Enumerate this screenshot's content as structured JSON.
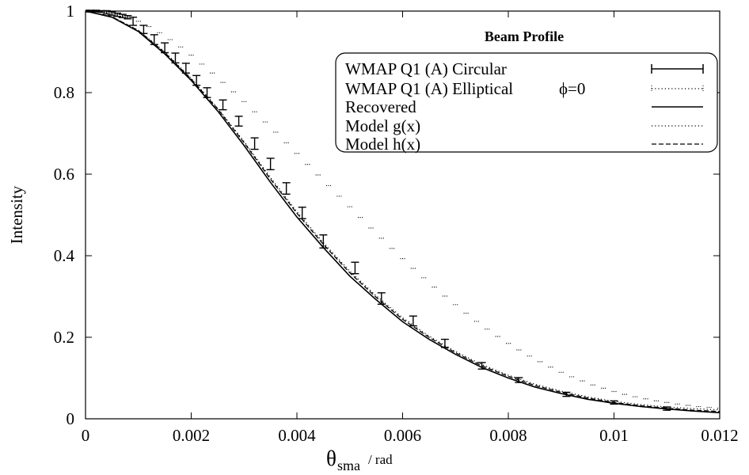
{
  "chart_data": {
    "type": "line",
    "title": "Beam Profile",
    "xlabel": {
      "symbol": "θ",
      "subscript": "sma",
      "unit": "/ rad"
    },
    "ylabel": "Intensity",
    "xlim": [
      0,
      0.012
    ],
    "ylim": [
      0,
      1
    ],
    "x_ticks": [
      "0",
      "0.002",
      "0.004",
      "0.006",
      "0.008",
      "0.01",
      "0.012"
    ],
    "y_ticks": [
      "0",
      "0.2",
      "0.4",
      "0.6",
      "0.8",
      "1"
    ],
    "grid": false,
    "legend_position": "top-right",
    "legend_phi": "ϕ=0",
    "series": [
      {
        "name": "WMAP Q1 (A) Circular",
        "style": "errorbar",
        "x": [
          0.0,
          0.0001,
          0.0002,
          0.0003,
          0.0004,
          0.0005,
          0.0006,
          0.0007,
          0.0008,
          0.0009,
          0.0011,
          0.0013,
          0.0015,
          0.0017,
          0.0019,
          0.0021,
          0.0023,
          0.0026,
          0.0029,
          0.0032,
          0.0035,
          0.0038,
          0.0041,
          0.0045,
          0.0051,
          0.0056,
          0.0062,
          0.0068,
          0.0075,
          0.0082,
          0.0091,
          0.01,
          0.011
        ],
        "y": [
          1.0,
          1.0,
          1.0,
          0.999,
          0.997,
          0.994,
          0.991,
          0.988,
          0.985,
          0.975,
          0.955,
          0.93,
          0.91,
          0.885,
          0.86,
          0.83,
          0.8,
          0.77,
          0.73,
          0.675,
          0.625,
          0.565,
          0.505,
          0.435,
          0.37,
          0.295,
          0.24,
          0.185,
          0.13,
          0.095,
          0.06,
          0.04,
          0.025
        ],
        "err": [
          0.002,
          0.002,
          0.002,
          0.002,
          0.004,
          0.004,
          0.004,
          0.004,
          0.004,
          0.01,
          0.01,
          0.012,
          0.012,
          0.012,
          0.012,
          0.012,
          0.012,
          0.012,
          0.012,
          0.014,
          0.014,
          0.014,
          0.014,
          0.016,
          0.014,
          0.014,
          0.012,
          0.01,
          0.008,
          0.006,
          0.005,
          0.004,
          0.004
        ]
      },
      {
        "name": "WMAP Q1 (A) Elliptical",
        "style": "dotted-points",
        "x": [
          0.0,
          0.0002,
          0.0004,
          0.0006,
          0.0008,
          0.001,
          0.0012,
          0.0014,
          0.0016,
          0.0018,
          0.002,
          0.0022,
          0.0024,
          0.0026,
          0.0028,
          0.003,
          0.0032,
          0.0034,
          0.0036,
          0.0038,
          0.004,
          0.0042,
          0.0044,
          0.0046,
          0.0048,
          0.005,
          0.0052,
          0.0054,
          0.0056,
          0.0058,
          0.006,
          0.0062,
          0.0064,
          0.0066,
          0.0068,
          0.007,
          0.0072,
          0.0074,
          0.0076,
          0.0078,
          0.008,
          0.0082,
          0.0084,
          0.0086,
          0.0088,
          0.009,
          0.0092,
          0.0094,
          0.0096,
          0.0098,
          0.01,
          0.0102,
          0.0104,
          0.0106,
          0.0108,
          0.011,
          0.0112,
          0.0114,
          0.0116,
          0.0118,
          0.012
        ],
        "y": [
          1.0,
          0.999,
          0.997,
          0.993,
          0.985,
          0.975,
          0.962,
          0.947,
          0.93,
          0.912,
          0.892,
          0.87,
          0.848,
          0.825,
          0.802,
          0.778,
          0.753,
          0.728,
          0.703,
          0.677,
          0.651,
          0.624,
          0.598,
          0.572,
          0.546,
          0.52,
          0.494,
          0.468,
          0.443,
          0.418,
          0.393,
          0.369,
          0.346,
          0.323,
          0.301,
          0.28,
          0.259,
          0.239,
          0.22,
          0.202,
          0.185,
          0.169,
          0.154,
          0.14,
          0.127,
          0.114,
          0.103,
          0.093,
          0.083,
          0.075,
          0.067,
          0.06,
          0.054,
          0.049,
          0.044,
          0.04,
          0.036,
          0.033,
          0.03,
          0.028,
          0.026
        ]
      },
      {
        "name": "Recovered",
        "style": "solid",
        "x": [
          0.0,
          0.0005,
          0.001,
          0.0015,
          0.002,
          0.0025,
          0.003,
          0.0035,
          0.004,
          0.0045,
          0.005,
          0.0055,
          0.006,
          0.0065,
          0.007,
          0.0075,
          0.008,
          0.0085,
          0.009,
          0.0095,
          0.01,
          0.0105,
          0.011,
          0.0115,
          0.012
        ],
        "y": [
          1.0,
          0.985,
          0.95,
          0.895,
          0.83,
          0.755,
          0.67,
          0.58,
          0.495,
          0.42,
          0.35,
          0.292,
          0.238,
          0.195,
          0.158,
          0.126,
          0.1,
          0.078,
          0.062,
          0.048,
          0.038,
          0.03,
          0.024,
          0.019,
          0.015
        ]
      },
      {
        "name": "Model g(x)",
        "style": "dotted",
        "x": [
          0.0,
          0.0005,
          0.001,
          0.0015,
          0.002,
          0.0025,
          0.003,
          0.0035,
          0.004,
          0.0045,
          0.005,
          0.0055,
          0.006,
          0.0065,
          0.007,
          0.0075,
          0.008,
          0.0085,
          0.009,
          0.0095,
          0.01,
          0.0105,
          0.011,
          0.0115,
          0.012
        ],
        "y": [
          1.0,
          0.986,
          0.953,
          0.9,
          0.835,
          0.762,
          0.68,
          0.592,
          0.508,
          0.432,
          0.362,
          0.302,
          0.248,
          0.203,
          0.165,
          0.133,
          0.107,
          0.085,
          0.068,
          0.054,
          0.043,
          0.035,
          0.029,
          0.025,
          0.022
        ]
      },
      {
        "name": "Model h(x)",
        "style": "dashed",
        "x": [
          0.0,
          0.0005,
          0.001,
          0.0015,
          0.002,
          0.0025,
          0.003,
          0.0035,
          0.004,
          0.0045,
          0.005,
          0.0055,
          0.006,
          0.0065,
          0.007,
          0.0075,
          0.008,
          0.0085,
          0.009,
          0.0095,
          0.01,
          0.0105,
          0.011,
          0.0115,
          0.012
        ],
        "y": [
          1.0,
          0.986,
          0.952,
          0.898,
          0.833,
          0.76,
          0.677,
          0.588,
          0.504,
          0.428,
          0.358,
          0.298,
          0.244,
          0.2,
          0.162,
          0.13,
          0.104,
          0.082,
          0.065,
          0.051,
          0.04,
          0.032,
          0.026,
          0.021,
          0.018
        ]
      }
    ]
  }
}
